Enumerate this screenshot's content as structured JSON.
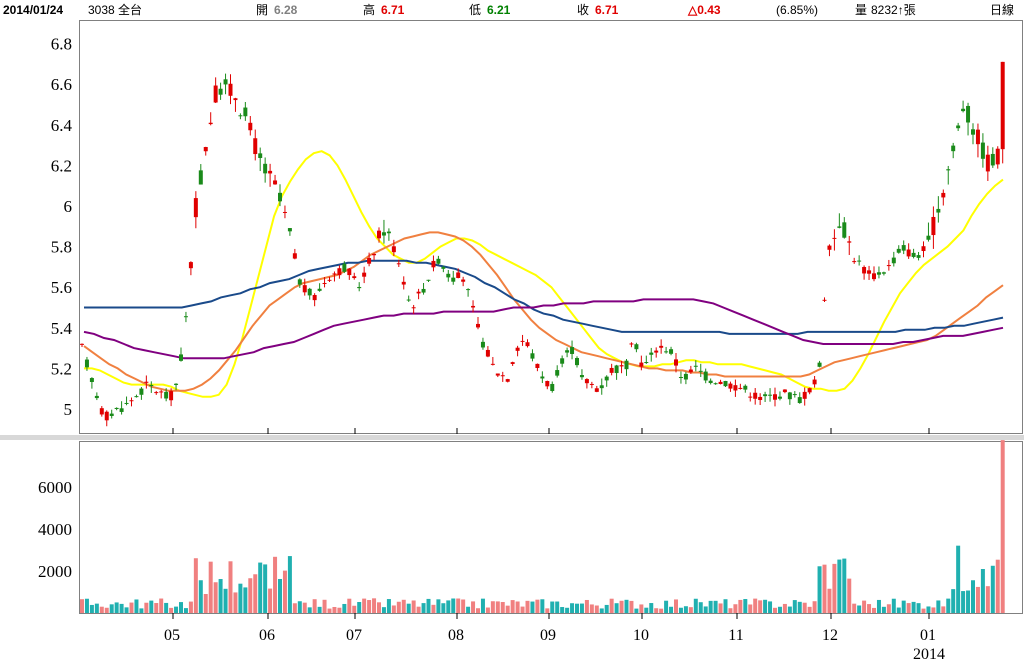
{
  "header": {
    "date": "2014/01/24",
    "stock": "3038 全台",
    "open_label": "開",
    "open_value": "6.28",
    "high_label": "高",
    "high_value": "6.71",
    "low_label": "低",
    "low_value": "6.21",
    "close_label": "收",
    "close_value": "6.71",
    "change": "△0.43",
    "change_pct": "(6.85%)",
    "volume_label": "量",
    "volume_value": "8232↑張",
    "period": "日線"
  },
  "colors": {
    "up": "#e00000",
    "down": "#1a8a1a",
    "ma5": "#ffff00",
    "ma20": "#f08040",
    "ma60": "#1a4a8a",
    "ma120": "#800080",
    "vol_up": "#f08080",
    "vol_down": "#20b0b0"
  },
  "chart_data": {
    "type": "candlestick",
    "price_axis": {
      "ticks": [
        "6.8",
        "6.6",
        "6.4",
        "6.2",
        "6",
        "5.8",
        "5.6",
        "5.4",
        "5.2",
        "5"
      ],
      "ylim": [
        4.9,
        6.9
      ]
    },
    "volume_axis": {
      "ticks": [
        "6000",
        "4000",
        "2000"
      ],
      "ylim": [
        0,
        8000
      ]
    },
    "x_ticks": [
      "05",
      "06",
      "07",
      "08",
      "09",
      "10",
      "11",
      "12",
      "01"
    ],
    "x_sublabel": "2014",
    "last_candle": {
      "open": 6.28,
      "high": 6.71,
      "low": 6.21,
      "close": 6.71,
      "volume": 8232
    },
    "ma_series": [
      {
        "values": [
          5.2,
          5.2,
          5.19,
          5.17,
          5.15,
          5.13,
          5.12,
          5.12,
          5.12,
          5.12,
          5.12,
          5.11,
          5.09,
          5.08,
          5.07,
          5.06,
          5.06,
          5.07,
          5.12,
          5.22,
          5.35,
          5.5,
          5.65,
          5.8,
          5.95,
          6.05,
          6.12,
          6.18,
          6.23,
          6.26,
          6.27,
          6.25,
          6.2,
          6.13,
          6.05,
          5.97,
          5.9,
          5.84,
          5.8,
          5.76,
          5.74,
          5.72,
          5.72,
          5.74,
          5.77,
          5.8,
          5.82,
          5.84,
          5.84,
          5.83,
          5.81,
          5.78,
          5.76,
          5.74,
          5.72,
          5.7,
          5.68,
          5.66,
          5.63,
          5.6,
          5.55,
          5.5,
          5.45,
          5.4,
          5.35,
          5.3,
          5.27,
          5.25,
          5.23,
          5.22,
          5.21,
          5.21,
          5.21,
          5.22,
          5.22,
          5.23,
          5.24,
          5.24,
          5.23,
          5.23,
          5.22,
          5.22,
          5.22,
          5.22,
          5.21,
          5.2,
          5.19,
          5.18,
          5.17,
          5.15,
          5.13,
          5.11,
          5.1,
          5.1,
          5.09,
          5.09,
          5.1,
          5.14,
          5.2,
          5.27,
          5.35,
          5.43,
          5.5,
          5.57,
          5.62,
          5.67,
          5.71,
          5.74,
          5.77,
          5.8,
          5.84,
          5.88,
          5.95,
          6.01,
          6.06,
          6.1,
          6.13
        ]
      },
      {
        "values": [
          5.31,
          5.28,
          5.25,
          5.22,
          5.2,
          5.17,
          5.15,
          5.13,
          5.11,
          5.1,
          5.09,
          5.09,
          5.09,
          5.1,
          5.12,
          5.15,
          5.19,
          5.24,
          5.29,
          5.35,
          5.41,
          5.46,
          5.51,
          5.54,
          5.57,
          5.6,
          5.62,
          5.63,
          5.64,
          5.65,
          5.66,
          5.68,
          5.7,
          5.73,
          5.76,
          5.78,
          5.8,
          5.82,
          5.84,
          5.85,
          5.86,
          5.87,
          5.87,
          5.86,
          5.85,
          5.83,
          5.8,
          5.76,
          5.71,
          5.66,
          5.6,
          5.54,
          5.49,
          5.44,
          5.4,
          5.37,
          5.34,
          5.32,
          5.3,
          5.28,
          5.27,
          5.26,
          5.25,
          5.24,
          5.23,
          5.22,
          5.21,
          5.2,
          5.2,
          5.19,
          5.19,
          5.19,
          5.18,
          5.18,
          5.17,
          5.17,
          5.16,
          5.16,
          5.16,
          5.16,
          5.16,
          5.16,
          5.16,
          5.16,
          5.16,
          5.16,
          5.17,
          5.19,
          5.21,
          5.23,
          5.24,
          5.25,
          5.26,
          5.27,
          5.28,
          5.29,
          5.3,
          5.31,
          5.32,
          5.33,
          5.34,
          5.36,
          5.39,
          5.42,
          5.45,
          5.48,
          5.51,
          5.55,
          5.58,
          5.61
        ]
      },
      {
        "values": [
          5.5,
          5.5,
          5.5,
          5.5,
          5.5,
          5.5,
          5.5,
          5.5,
          5.5,
          5.5,
          5.5,
          5.51,
          5.52,
          5.53,
          5.55,
          5.56,
          5.57,
          5.59,
          5.6,
          5.62,
          5.63,
          5.64,
          5.66,
          5.68,
          5.69,
          5.7,
          5.71,
          5.72,
          5.72,
          5.73,
          5.73,
          5.73,
          5.73,
          5.73,
          5.72,
          5.72,
          5.71,
          5.7,
          5.69,
          5.67,
          5.65,
          5.62,
          5.6,
          5.57,
          5.54,
          5.52,
          5.49,
          5.47,
          5.46,
          5.44,
          5.43,
          5.42,
          5.41,
          5.4,
          5.39,
          5.38,
          5.38,
          5.38,
          5.38,
          5.38,
          5.38,
          5.38,
          5.38,
          5.38,
          5.38,
          5.38,
          5.37,
          5.37,
          5.37,
          5.37,
          5.37,
          5.37,
          5.37,
          5.37,
          5.38,
          5.38,
          5.38,
          5.38,
          5.38,
          5.38,
          5.38,
          5.38,
          5.38,
          5.38,
          5.39,
          5.39,
          5.39,
          5.4,
          5.4,
          5.41,
          5.41,
          5.42,
          5.43,
          5.44,
          5.45
        ]
      },
      {
        "values": [
          5.38,
          5.37,
          5.35,
          5.34,
          5.32,
          5.3,
          5.29,
          5.28,
          5.27,
          5.26,
          5.25,
          5.25,
          5.25,
          5.25,
          5.25,
          5.26,
          5.27,
          5.28,
          5.3,
          5.31,
          5.32,
          5.33,
          5.35,
          5.37,
          5.39,
          5.41,
          5.42,
          5.43,
          5.44,
          5.45,
          5.46,
          5.46,
          5.47,
          5.47,
          5.47,
          5.47,
          5.48,
          5.48,
          5.48,
          5.48,
          5.48,
          5.48,
          5.49,
          5.5,
          5.5,
          5.5,
          5.51,
          5.51,
          5.52,
          5.52,
          5.52,
          5.53,
          5.53,
          5.53,
          5.53,
          5.53,
          5.54,
          5.54,
          5.54,
          5.54,
          5.54,
          5.54,
          5.53,
          5.52,
          5.5,
          5.48,
          5.46,
          5.44,
          5.42,
          5.4,
          5.38,
          5.36,
          5.34,
          5.33,
          5.32,
          5.32,
          5.32,
          5.32,
          5.32,
          5.32,
          5.32,
          5.32,
          5.33,
          5.33,
          5.34,
          5.35,
          5.36,
          5.36,
          5.36,
          5.37,
          5.38,
          5.39,
          5.4
        ]
      }
    ]
  }
}
